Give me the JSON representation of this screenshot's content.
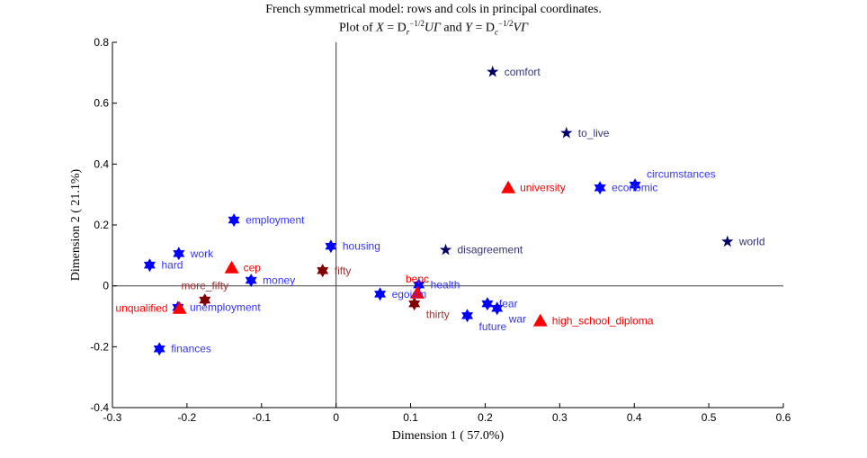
{
  "chart_data": {
    "type": "scatter",
    "title_line1": "French symmetrical model: rows and cols in principal coordinates.",
    "title_line2": {
      "prefix": "Plot of ",
      "x_var": "X",
      "eq1": " = D",
      "sub1": "r",
      "sup1": "−1/2",
      "rest1": "UΓ",
      "and": " and ",
      "y_var": "Y",
      "eq2": " = D",
      "sub2": "c",
      "sup2": "−1/2",
      "rest2": "VΓ"
    },
    "xlabel": "Dimension  1 ( 57.0%)",
    "ylabel": "Dimension  2 ( 21.1%)",
    "xlim": [
      -0.3,
      0.6
    ],
    "ylim": [
      -0.4,
      0.8
    ],
    "xticks": [
      "-0.3",
      "-0.2",
      "-0.1",
      "0",
      "0.1",
      "0.2",
      "0.3",
      "0.4",
      "0.5",
      "0.6"
    ],
    "yticks": [
      "-0.4",
      "-0.2",
      "0",
      "0.2",
      "0.4",
      "0.6",
      "0.8"
    ],
    "grid": false,
    "series": [
      {
        "marker": "hexagram",
        "color": "#0000ff",
        "label_color": "#3333ff",
        "points": [
          {
            "label": "work",
            "x": -0.211,
            "y": 0.106
          },
          {
            "label": "hard",
            "x": -0.25,
            "y": 0.068
          },
          {
            "label": "employment",
            "x": -0.137,
            "y": 0.216
          },
          {
            "label": "housing",
            "x": -0.007,
            "y": 0.13
          },
          {
            "label": "money",
            "x": -0.114,
            "y": 0.018
          },
          {
            "label": "health",
            "x": 0.111,
            "y": 0.003
          },
          {
            "label": "egoism",
            "x": 0.059,
            "y": -0.027
          },
          {
            "label": "fear",
            "x": 0.203,
            "y": -0.059
          },
          {
            "label": "war",
            "x": 0.216,
            "y": -0.074
          },
          {
            "label": "future",
            "x": 0.176,
            "y": -0.098
          },
          {
            "label": "unemployment",
            "x": -0.212,
            "y": -0.071
          },
          {
            "label": "finances",
            "x": -0.237,
            "y": -0.207
          },
          {
            "label": "economic",
            "x": 0.354,
            "y": 0.322
          },
          {
            "label": "circumstances",
            "x": 0.401,
            "y": 0.331
          }
        ]
      },
      {
        "marker": "pentagram",
        "color": "#000066",
        "label_color": "#333377",
        "points": [
          {
            "label": "comfort",
            "x": 0.21,
            "y": 0.703
          },
          {
            "label": "to_live",
            "x": 0.309,
            "y": 0.502
          },
          {
            "label": "disagreement",
            "x": 0.147,
            "y": 0.118
          },
          {
            "label": "world",
            "x": 0.525,
            "y": 0.145
          }
        ]
      },
      {
        "marker": "hexagram",
        "color": "#800000",
        "label_color": "#993333",
        "points": [
          {
            "label": "fifty",
            "x": -0.018,
            "y": 0.05
          },
          {
            "label": "more_fifty",
            "x": -0.176,
            "y": -0.047
          },
          {
            "label": "thirty",
            "x": 0.105,
            "y": -0.059
          }
        ]
      },
      {
        "marker": "triangle",
        "color": "#ff0000",
        "label_color": "#ff0000",
        "points": [
          {
            "label": "cep",
            "x": -0.14,
            "y": 0.059
          },
          {
            "label": "university",
            "x": 0.231,
            "y": 0.322
          },
          {
            "label": "bepc",
            "x": 0.109,
            "y": -0.024
          },
          {
            "label": "unqualified",
            "x": -0.21,
            "y": -0.074
          },
          {
            "label": "high_school_diploma",
            "x": 0.274,
            "y": -0.115
          }
        ]
      }
    ]
  }
}
